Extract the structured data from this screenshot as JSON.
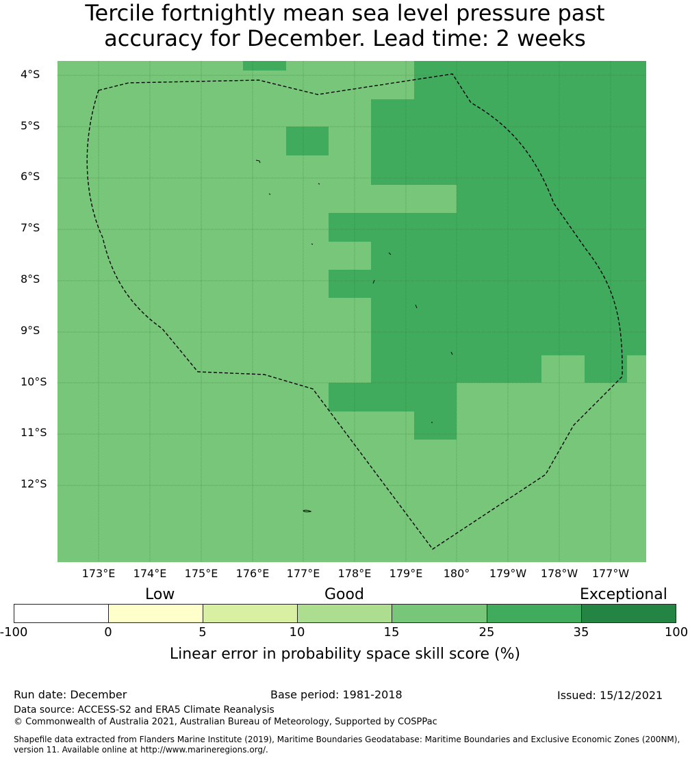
{
  "title_line1": "Tercile fortnightly mean sea level pressure past",
  "title_line2": "accuracy for December. Lead time: 2 weeks",
  "lat_labels": [
    "4°S",
    "5°S",
    "6°S",
    "7°S",
    "8°S",
    "9°S",
    "10°S",
    "11°S",
    "12°S"
  ],
  "lon_labels": [
    "173°E",
    "174°E",
    "175°E",
    "176°E",
    "177°E",
    "178°E",
    "179°E",
    "180°",
    "179°W",
    "178°W",
    "177°W"
  ],
  "colorbar": {
    "categories": [
      "Low",
      "Good",
      "Exceptional"
    ],
    "ticks": [
      "-100",
      "0",
      "5",
      "10",
      "15",
      "25",
      "35",
      "100"
    ],
    "colors": [
      "#ffffff",
      "#ffffcc",
      "#d9f0a3",
      "#addd8e",
      "#78c679",
      "#41ab5d",
      "#238443"
    ],
    "label": "Linear error in probability space skill score (%)"
  },
  "map_colors": {
    "light": "#78c679",
    "dark": "#41ab5d"
  },
  "footer": {
    "run_date": "Run date: December",
    "base_period": "Base period: 1981-2018",
    "issued": "Issued: 15/12/2021",
    "data_source": "Data source: ACCESS-S2 and ERA5 Climate Reanalysis",
    "copyright": "© Commonwealth of Australia 2021, Australian Bureau of Meteorology, Supported by COSPPac",
    "shapefile_line1": "Shapefile data extracted from Flanders Marine Institute (2019), Maritime Boundaries Geodatabase: Maritime Boundaries and Exclusive Economic Zones (200NM),",
    "shapefile_line2": "version 11. Available online at http://www.marineregions.org/."
  }
}
